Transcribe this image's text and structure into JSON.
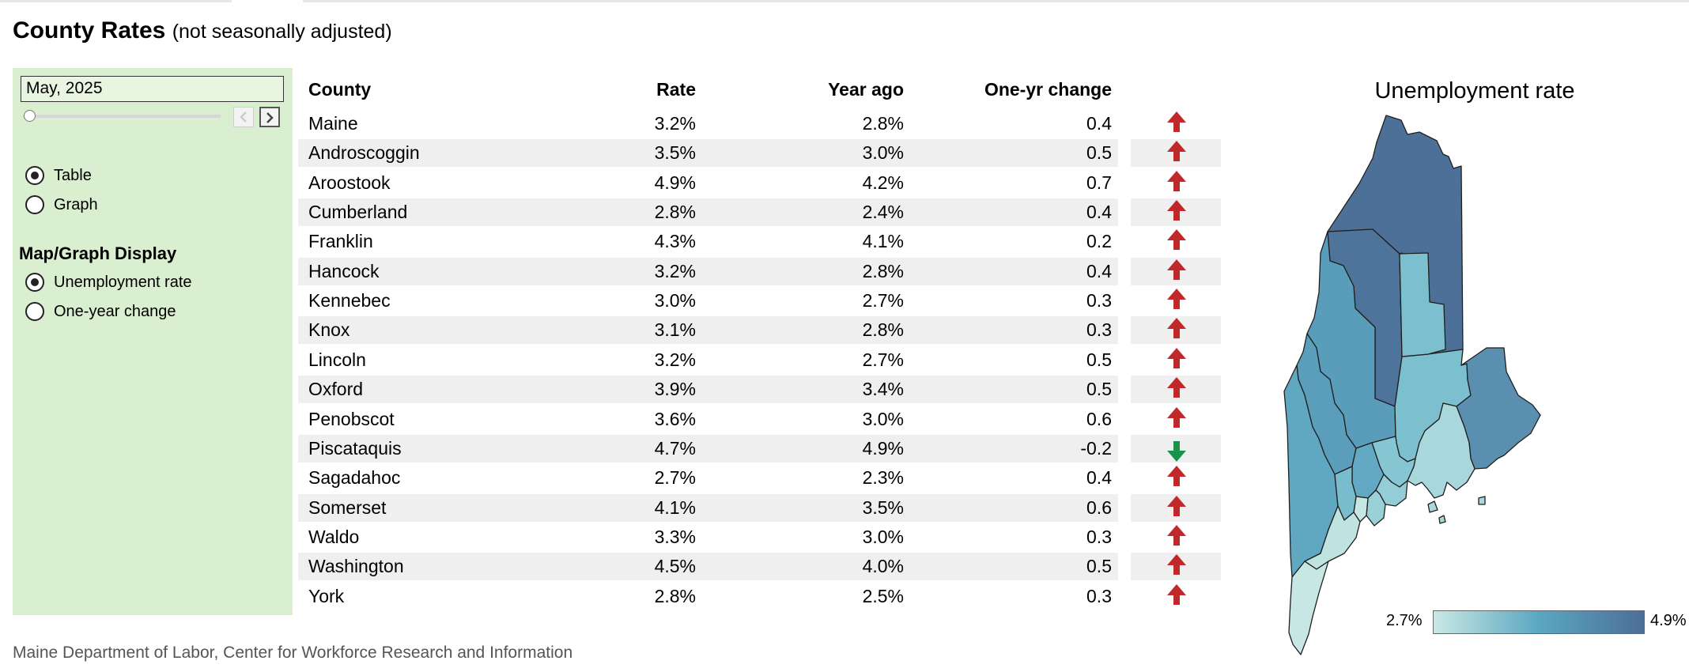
{
  "header": {
    "title": "County Rates",
    "subtitle": "(not seasonally adjusted)"
  },
  "controls": {
    "date_value": "May, 2025",
    "view_options": [
      {
        "label": "Table",
        "selected": true
      },
      {
        "label": "Graph",
        "selected": false
      }
    ],
    "display_heading": "Map/Graph Display",
    "display_options": [
      {
        "label": "Unemployment rate",
        "selected": true
      },
      {
        "label": "One-year change",
        "selected": false
      }
    ]
  },
  "table": {
    "headers": [
      "County",
      "Rate",
      "Year ago",
      "One-yr change"
    ],
    "rows": [
      {
        "county": "Maine",
        "rate": "3.2%",
        "year_ago": "2.8%",
        "change": "0.4",
        "direction": "up"
      },
      {
        "county": "Androscoggin",
        "rate": "3.5%",
        "year_ago": "3.0%",
        "change": "0.5",
        "direction": "up"
      },
      {
        "county": "Aroostook",
        "rate": "4.9%",
        "year_ago": "4.2%",
        "change": "0.7",
        "direction": "up"
      },
      {
        "county": "Cumberland",
        "rate": "2.8%",
        "year_ago": "2.4%",
        "change": "0.4",
        "direction": "up"
      },
      {
        "county": "Franklin",
        "rate": "4.3%",
        "year_ago": "4.1%",
        "change": "0.2",
        "direction": "up"
      },
      {
        "county": "Hancock",
        "rate": "3.2%",
        "year_ago": "2.8%",
        "change": "0.4",
        "direction": "up"
      },
      {
        "county": "Kennebec",
        "rate": "3.0%",
        "year_ago": "2.7%",
        "change": "0.3",
        "direction": "up"
      },
      {
        "county": "Knox",
        "rate": "3.1%",
        "year_ago": "2.8%",
        "change": "0.3",
        "direction": "up"
      },
      {
        "county": "Lincoln",
        "rate": "3.2%",
        "year_ago": "2.7%",
        "change": "0.5",
        "direction": "up"
      },
      {
        "county": "Oxford",
        "rate": "3.9%",
        "year_ago": "3.4%",
        "change": "0.5",
        "direction": "up"
      },
      {
        "county": "Penobscot",
        "rate": "3.6%",
        "year_ago": "3.0%",
        "change": "0.6",
        "direction": "up"
      },
      {
        "county": "Piscataquis",
        "rate": "4.7%",
        "year_ago": "4.9%",
        "change": "-0.2",
        "direction": "down"
      },
      {
        "county": "Sagadahoc",
        "rate": "2.7%",
        "year_ago": "2.3%",
        "change": "0.4",
        "direction": "up"
      },
      {
        "county": "Somerset",
        "rate": "4.1%",
        "year_ago": "3.5%",
        "change": "0.6",
        "direction": "up"
      },
      {
        "county": "Waldo",
        "rate": "3.3%",
        "year_ago": "3.0%",
        "change": "0.3",
        "direction": "up"
      },
      {
        "county": "Washington",
        "rate": "4.5%",
        "year_ago": "4.0%",
        "change": "0.5",
        "direction": "up"
      },
      {
        "county": "York",
        "rate": "2.8%",
        "year_ago": "2.5%",
        "change": "0.3",
        "direction": "up"
      }
    ]
  },
  "map": {
    "title": "Unemployment rate",
    "legend_min": "2.7%",
    "legend_max": "4.9%",
    "scale_colors": [
      "#c9e8e4",
      "#5aa7c2",
      "#4c6e98"
    ]
  },
  "footer": {
    "source": "Maine Department of Labor, Center for Workforce Research and Information"
  },
  "colors": {
    "panel": "#d9efcf",
    "stripe": "#efefef",
    "arrow_up": "#c0282b",
    "arrow_down": "#17934a"
  }
}
